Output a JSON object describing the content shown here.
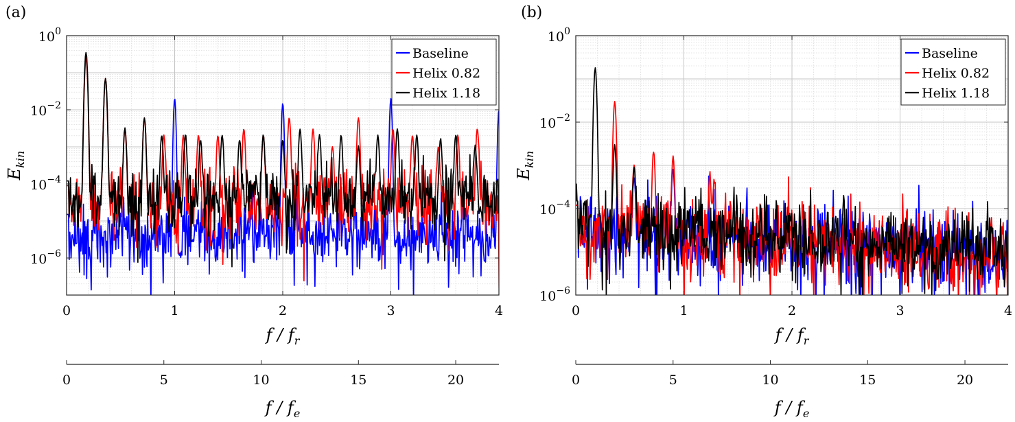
{
  "panels": [
    {
      "panel_label": "(a)",
      "ylabel": {
        "main": "E",
        "sub": "kin"
      },
      "xlabel": {
        "main": "f / f",
        "sub": "r"
      },
      "xlabel2": {
        "main": "f / f",
        "sub": "e"
      },
      "xticks": [
        "0",
        "1",
        "2",
        "3",
        "4"
      ],
      "x2ticks": [
        "0",
        "5",
        "10",
        "15",
        "20"
      ],
      "yticks": [
        {
          "base": "10",
          "exp": "0"
        },
        {
          "base": "10",
          "exp": "−2"
        },
        {
          "base": "10",
          "exp": "−4"
        },
        {
          "base": "10",
          "exp": "−6"
        }
      ],
      "legend": [
        "Baseline",
        "Helix 0.82",
        "Helix 1.18"
      ]
    },
    {
      "panel_label": "(b)",
      "ylabel": {
        "main": "E",
        "sub": "kin"
      },
      "xlabel": {
        "main": "f / f",
        "sub": "r"
      },
      "xlabel2": {
        "main": "f / f",
        "sub": "e"
      },
      "xticks": [
        "0",
        "1",
        "2",
        "3",
        "4"
      ],
      "x2ticks": [
        "0",
        "5",
        "10",
        "15",
        "20"
      ],
      "yticks": [
        {
          "base": "10",
          "exp": "0"
        },
        {
          "base": "10",
          "exp": "−2"
        },
        {
          "base": "10",
          "exp": "−4"
        },
        {
          "base": "10",
          "exp": "−6"
        }
      ],
      "legend": [
        "Baseline",
        "Helix 0.82",
        "Helix 1.18"
      ]
    }
  ],
  "chart_data": [
    {
      "type": "line",
      "xscale": "linear",
      "yscale": "log",
      "xlim": [
        0,
        4
      ],
      "ylim": [
        1e-07,
        1
      ],
      "x2lim": [
        0,
        22.22
      ],
      "grid": true,
      "legend_position": "top-right",
      "colors": {
        "Baseline": "#0000ff",
        "Helix 0.82": "#ff0000",
        "Helix 1.18": "#000000"
      },
      "series": [
        {
          "name": "Baseline",
          "floor": 5e-06,
          "spread": 0.45,
          "peaks": [
            [
              1.0,
              0.02
            ],
            [
              2.0,
              0.015
            ],
            [
              3.0,
              0.02
            ],
            [
              4.0,
              0.01
            ]
          ],
          "peak_width": 0.01,
          "x_step": 0.006
        },
        {
          "name": "Helix 0.82",
          "floor": 3e-05,
          "spread": 0.45,
          "peaks": [
            [
              0.18,
              0.25
            ],
            [
              0.36,
              0.07
            ],
            [
              0.54,
              0.003
            ],
            [
              0.72,
              0.006
            ],
            [
              0.9,
              0.002
            ],
            [
              1.08,
              0.002
            ],
            [
              1.22,
              0.002
            ],
            [
              1.4,
              0.002
            ],
            [
              1.64,
              0.003
            ],
            [
              1.82,
              0.002
            ],
            [
              2.06,
              0.006
            ],
            [
              2.28,
              0.003
            ],
            [
              2.46,
              0.001
            ],
            [
              2.7,
              0.006
            ],
            [
              3.02,
              0.003
            ],
            [
              3.2,
              0.002
            ],
            [
              3.44,
              0.001
            ],
            [
              3.62,
              0.002
            ],
            [
              3.8,
              0.003
            ]
          ],
          "peak_width": 0.012,
          "x_step": 0.006
        },
        {
          "name": "Helix 1.18",
          "floor": 4e-05,
          "spread": 0.4,
          "peaks": [
            [
              0.18,
              0.35
            ],
            [
              0.36,
              0.07
            ],
            [
              0.54,
              0.003
            ],
            [
              0.72,
              0.006
            ],
            [
              0.88,
              0.002
            ],
            [
              1.1,
              0.002
            ],
            [
              1.24,
              0.0015
            ],
            [
              1.44,
              0.002
            ],
            [
              1.6,
              0.0015
            ],
            [
              1.82,
              0.002
            ],
            [
              2.0,
              0.0015
            ],
            [
              2.16,
              0.003
            ],
            [
              2.34,
              0.002
            ],
            [
              2.54,
              0.002
            ],
            [
              2.7,
              0.001
            ],
            [
              2.88,
              0.002
            ],
            [
              3.06,
              0.003
            ],
            [
              3.24,
              0.002
            ],
            [
              3.46,
              0.0015
            ],
            [
              3.6,
              0.002
            ],
            [
              3.78,
              0.001
            ]
          ],
          "peak_width": 0.012,
          "x_step": 0.006
        }
      ]
    },
    {
      "type": "line",
      "xscale": "linear",
      "yscale": "log",
      "xlim": [
        0,
        4
      ],
      "ylim": [
        1e-06,
        1
      ],
      "x2lim": [
        0,
        22.22
      ],
      "grid": true,
      "legend_position": "top-right",
      "colors": {
        "Baseline": "#0000ff",
        "Helix 0.82": "#ff0000",
        "Helix 1.18": "#000000"
      },
      "series": [
        {
          "name": "Baseline",
          "floor": 4e-05,
          "floor_end": 8e-06,
          "spread": 0.45,
          "peaks": [
            [
              0.9,
              0.0008
            ],
            [
              0.54,
              0.0005
            ]
          ],
          "peak_width": 0.012,
          "x_step": 0.006
        },
        {
          "name": "Helix 0.82",
          "floor": 4e-05,
          "floor_end": 9e-06,
          "spread": 0.45,
          "peaks": [
            [
              0.36,
              0.03
            ],
            [
              0.54,
              0.001
            ],
            [
              0.72,
              0.002
            ],
            [
              0.9,
              0.0015
            ],
            [
              1.24,
              0.0005
            ],
            [
              1.28,
              0.0004
            ]
          ],
          "peak_width": 0.012,
          "x_step": 0.006
        },
        {
          "name": "Helix 1.18",
          "floor": 5e-05,
          "floor_end": 9e-06,
          "spread": 0.4,
          "peaks": [
            [
              0.18,
              0.18
            ],
            [
              0.36,
              0.003
            ],
            [
              0.54,
              0.0008
            ]
          ],
          "peak_width": 0.012,
          "x_step": 0.006
        }
      ]
    }
  ]
}
